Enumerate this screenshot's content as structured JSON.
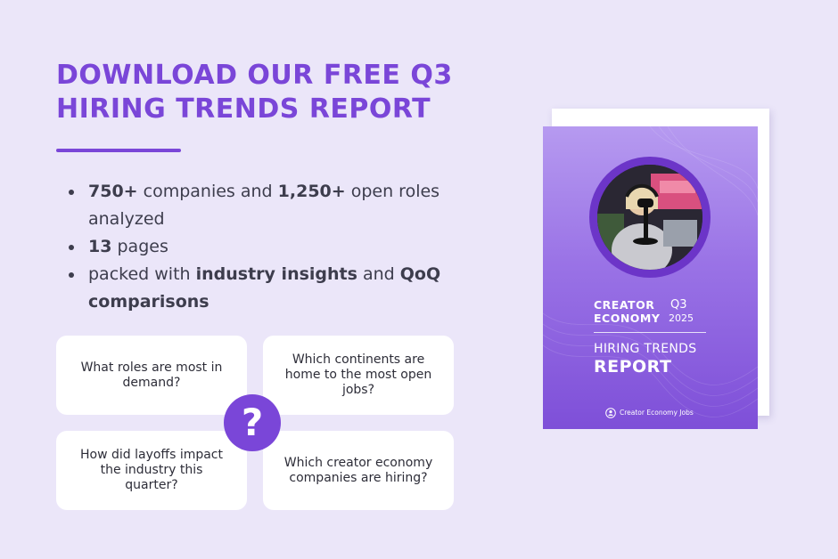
{
  "headline": {
    "line1": "DOWNLOAD OUR FREE Q3",
    "line2": "HIRING TRENDS REPORT"
  },
  "bullets": [
    {
      "strong1": "750+",
      "text1": " companies and ",
      "strong2": "1,250+",
      "text2": " open roles analyzed"
    },
    {
      "strong1": "13",
      "text1": " pages"
    },
    {
      "text1": "packed with ",
      "strong1": "industry insights",
      "text2": " and ",
      "strong2": "QoQ comparisons"
    }
  ],
  "questions": {
    "q1": "What roles are most in demand?",
    "q2": "Which continents are home to the most open jobs?",
    "q3": "How did layoffs impact the industry this quarter?",
    "q4": "Which creator economy companies are hiring?"
  },
  "question_mark": "?",
  "cover": {
    "creator": "CREATOR",
    "economy": "ECONOMY",
    "quarter": "Q3",
    "year": "2025",
    "hiring_trends": "HIRING TRENDS",
    "report": "REPORT",
    "brand": "Creator Economy Jobs"
  },
  "colors": {
    "accent": "#7a46d8",
    "background": "#ebe6f9",
    "cover_top": "#b69af0",
    "cover_bottom": "#7e4fd8"
  }
}
